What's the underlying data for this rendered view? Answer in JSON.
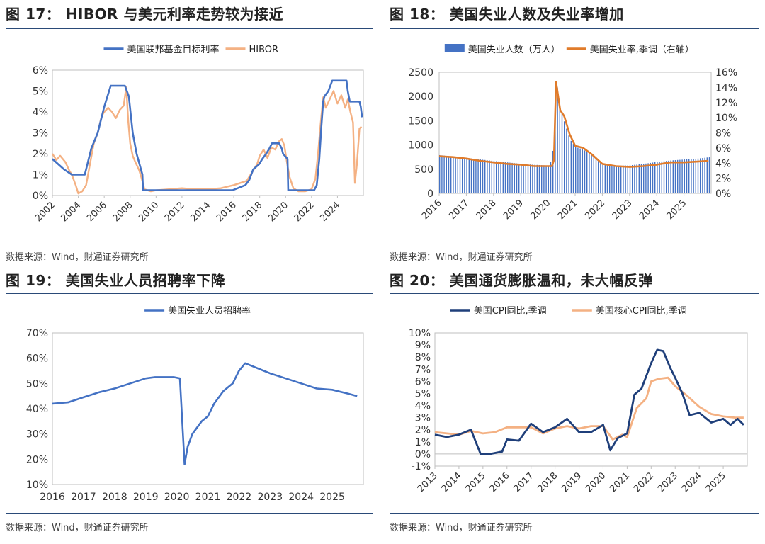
{
  "source_text": "数据来源：Wind，财通证券研究所",
  "colors": {
    "blue": "#4472c4",
    "orange": "#f4b183",
    "dark_orange": "#e07b2a",
    "navy": "#1f3f7a",
    "light_orange": "#f4b183",
    "rule": "#2a4a78"
  },
  "chart_data": [
    {
      "type": "line",
      "title": "图 17：  HIBOR 与美元利率走势较为接近",
      "series": [
        {
          "name": "美国联邦基金目标利率",
          "color": "#4472c4",
          "x": [
            2002,
            2002.9,
            2003.5,
            2004.5,
            2004.6,
            2005,
            2005.5,
            2006,
            2006.5,
            2007.6,
            2007.9,
            2008.2,
            2008.5,
            2008.95,
            2009,
            2015.9,
            2016.9,
            2017.2,
            2017.5,
            2017.95,
            2018.2,
            2018.5,
            2018.75,
            2018.95,
            2019.5,
            2019.7,
            2019.8,
            2020.15,
            2020.2,
            2022.2,
            2022.4,
            2022.6,
            2022.75,
            2022.9,
            2023,
            2023.3,
            2023.6,
            2024.7,
            2024.8,
            2024.95,
            2025.7,
            2025.8,
            2025.9
          ],
          "y": [
            1.75,
            1.25,
            1.0,
            1.0,
            1.25,
            2.25,
            3.0,
            4.25,
            5.25,
            5.25,
            4.75,
            3.0,
            2.0,
            1.0,
            0.25,
            0.25,
            0.5,
            0.75,
            1.25,
            1.5,
            1.75,
            2.0,
            2.25,
            2.5,
            2.5,
            2.25,
            2.0,
            1.75,
            0.25,
            0.25,
            0.5,
            1.75,
            3.25,
            4.5,
            4.75,
            5.0,
            5.5,
            5.5,
            5.0,
            4.5,
            4.5,
            4.25,
            3.75
          ]
        },
        {
          "name": "HIBOR",
          "color": "#f4b183",
          "x": [
            2002,
            2002.3,
            2002.6,
            2003,
            2003.3,
            2003.5,
            2003.8,
            2004,
            2004.3,
            2004.6,
            2004.9,
            2005.2,
            2005.5,
            2005.8,
            2006,
            2006.3,
            2006.6,
            2006.9,
            2007.2,
            2007.5,
            2007.7,
            2007.85,
            2008,
            2008.2,
            2008.4,
            2008.7,
            2008.9,
            2009.1,
            2009.6,
            2010,
            2011,
            2012,
            2013,
            2014,
            2015,
            2016,
            2016.5,
            2017,
            2017.5,
            2017.8,
            2018,
            2018.3,
            2018.6,
            2018.9,
            2019.2,
            2019.5,
            2019.7,
            2019.9,
            2020.1,
            2020.3,
            2020.6,
            2021,
            2021.5,
            2022,
            2022.3,
            2022.5,
            2022.7,
            2022.9,
            2023.1,
            2023.4,
            2023.7,
            2024,
            2024.3,
            2024.6,
            2024.8,
            2025,
            2025.2,
            2025.35,
            2025.5,
            2025.7,
            2025.85
          ],
          "y": [
            2.0,
            1.7,
            1.9,
            1.6,
            1.2,
            1.0,
            0.5,
            0.1,
            0.2,
            0.5,
            1.5,
            2.5,
            3.0,
            3.8,
            4.0,
            4.2,
            4.0,
            3.7,
            4.1,
            4.3,
            5.2,
            3.6,
            2.5,
            1.9,
            1.6,
            1.2,
            0.8,
            0.3,
            0.2,
            0.25,
            0.3,
            0.35,
            0.3,
            0.3,
            0.35,
            0.5,
            0.6,
            0.7,
            1.2,
            1.5,
            1.9,
            2.2,
            1.8,
            2.3,
            2.2,
            2.6,
            2.7,
            2.4,
            1.6,
            0.9,
            0.35,
            0.2,
            0.2,
            0.3,
            0.8,
            2.0,
            3.4,
            4.7,
            4.2,
            4.6,
            5.0,
            4.4,
            4.8,
            4.2,
            4.6,
            4.0,
            3.5,
            0.6,
            1.5,
            3.2,
            3.3
          ]
        }
      ],
      "ylim": [
        0,
        6
      ],
      "yticks": [
        "0%",
        "1%",
        "2%",
        "3%",
        "4%",
        "5%",
        "6%"
      ],
      "xlim": [
        2002,
        2026
      ],
      "xticks": [
        "2002",
        "2004",
        "2006",
        "2008",
        "2010",
        "2012",
        "2014",
        "2016",
        "2018",
        "2020",
        "2022",
        "2024"
      ]
    },
    {
      "type": "bar+line",
      "title": "图 18：  美国失业人数及失业率增加",
      "bars": {
        "name": "美国失业人数（万人）",
        "color": "#4472c4",
        "x": [
          2016,
          2016.5,
          2017,
          2017.5,
          2018,
          2018.5,
          2019,
          2019.5,
          2020,
          2020.15,
          2020.3,
          2020.45,
          2020.6,
          2020.8,
          2021,
          2021.3,
          2021.6,
          2022,
          2022.5,
          2023,
          2023.5,
          2024,
          2024.5,
          2025,
          2025.5,
          2025.9
        ],
        "values": [
          790,
          760,
          730,
          700,
          670,
          640,
          610,
          590,
          575,
          700,
          2300,
          1780,
          1450,
          1110,
          960,
          900,
          780,
          590,
          570,
          580,
          610,
          650,
          680,
          700,
          720,
          745
        ]
      },
      "line": {
        "name": "美国失业率,季调（右轴）",
        "color": "#e07b2a",
        "x": [
          2016,
          2016.5,
          2017,
          2017.5,
          2018,
          2018.5,
          2019,
          2019.5,
          2020,
          2020.15,
          2020.22,
          2020.3,
          2020.45,
          2020.6,
          2020.8,
          2021,
          2021.3,
          2021.6,
          2022,
          2022.5,
          2023,
          2023.5,
          2024,
          2024.5,
          2025,
          2025.5,
          2025.9
        ],
        "y": [
          4.9,
          4.8,
          4.6,
          4.3,
          4.1,
          3.9,
          3.8,
          3.6,
          3.6,
          3.6,
          4.4,
          14.7,
          11.0,
          10.2,
          7.8,
          6.3,
          6.0,
          5.2,
          3.9,
          3.6,
          3.5,
          3.6,
          3.8,
          4.1,
          4.1,
          4.2,
          4.3
        ]
      },
      "ylim_left": [
        0,
        2500
      ],
      "yticks_left": [
        "0",
        "500",
        "1000",
        "1500",
        "2000",
        "2500"
      ],
      "ylim_right": [
        0,
        16
      ],
      "yticks_right": [
        "0%",
        "2%",
        "4%",
        "6%",
        "8%",
        "10%",
        "12%",
        "14%",
        "16%"
      ],
      "xlim": [
        2016,
        2026
      ],
      "xticks": [
        "2016",
        "2017",
        "2018",
        "2019",
        "2020",
        "2021",
        "2022",
        "2023",
        "2024",
        "2025"
      ]
    },
    {
      "type": "line",
      "title": "图 19：  美国失业人员招聘率下降",
      "series": [
        {
          "name": "美国失业人员招聘率",
          "color": "#4472c4",
          "x": [
            2016,
            2016.5,
            2017,
            2017.5,
            2018,
            2018.5,
            2019,
            2019.3,
            2019.6,
            2019.9,
            2020.1,
            2020.25,
            2020.35,
            2020.5,
            2020.8,
            2021,
            2021.2,
            2021.5,
            2021.8,
            2022,
            2022.2,
            2022.5,
            2022.8,
            2023,
            2023.5,
            2024,
            2024.5,
            2025,
            2025.5,
            2025.8
          ],
          "y": [
            42,
            42.5,
            44.5,
            46.5,
            48,
            50,
            52,
            52.5,
            52.5,
            52.5,
            52,
            18,
            25,
            30,
            35,
            37,
            42,
            47,
            50,
            55,
            58,
            56.5,
            55,
            54,
            52,
            50,
            48,
            47.5,
            46,
            45
          ]
        }
      ],
      "ylim": [
        10,
        70
      ],
      "yticks": [
        "10%",
        "20%",
        "30%",
        "40%",
        "50%",
        "60%",
        "70%"
      ],
      "xlim": [
        2016,
        2026
      ],
      "xticks": [
        "2016",
        "2017",
        "2018",
        "2019",
        "2020",
        "2021",
        "2022",
        "2023",
        "2024",
        "2025"
      ]
    },
    {
      "type": "line",
      "title": "图 20：  美国通货膨胀温和，未大幅反弹",
      "series": [
        {
          "name": "美国CPI同比,季调",
          "color": "#1f3f7a",
          "x": [
            2013,
            2013.5,
            2014,
            2014.5,
            2014.9,
            2015.3,
            2015.8,
            2016,
            2016.5,
            2017,
            2017.5,
            2018,
            2018.5,
            2019,
            2019.5,
            2020,
            2020.3,
            2020.6,
            2021,
            2021.3,
            2021.6,
            2022,
            2022.25,
            2022.5,
            2022.8,
            2023,
            2023.3,
            2023.6,
            2024,
            2024.5,
            2025,
            2025.3,
            2025.6,
            2025.85
          ],
          "y": [
            1.6,
            1.4,
            1.6,
            2.0,
            0.0,
            0.0,
            0.2,
            1.2,
            1.1,
            2.5,
            1.8,
            2.2,
            2.9,
            1.8,
            1.8,
            2.4,
            0.3,
            1.3,
            1.7,
            4.9,
            5.4,
            7.5,
            8.6,
            8.5,
            7.1,
            6.3,
            5.0,
            3.2,
            3.4,
            2.6,
            2.9,
            2.4,
            2.9,
            2.4
          ]
        },
        {
          "name": "美国核心CPI同比,季调",
          "color": "#f4b183",
          "x": [
            2013,
            2013.5,
            2014,
            2014.5,
            2015,
            2015.5,
            2016,
            2016.5,
            2017,
            2017.5,
            2018,
            2018.5,
            2019,
            2019.5,
            2020,
            2020.4,
            2020.8,
            2021,
            2021.4,
            2021.8,
            2022,
            2022.3,
            2022.7,
            2023,
            2023.5,
            2024,
            2024.5,
            2025,
            2025.5,
            2025.85
          ],
          "y": [
            1.8,
            1.7,
            1.6,
            1.9,
            1.7,
            1.8,
            2.2,
            2.2,
            2.2,
            1.7,
            2.1,
            2.3,
            2.1,
            2.3,
            2.3,
            1.2,
            1.6,
            1.4,
            3.8,
            4.6,
            6.0,
            6.2,
            6.3,
            5.6,
            4.8,
            3.9,
            3.3,
            3.1,
            3.0,
            3.0
          ]
        }
      ],
      "ylim": [
        -1,
        10
      ],
      "yticks": [
        "-1%",
        "0%",
        "1%",
        "2%",
        "3%",
        "4%",
        "5%",
        "6%",
        "7%",
        "8%",
        "9%",
        "10%"
      ],
      "xlim": [
        2013,
        2026
      ],
      "xticks": [
        "2013",
        "2014",
        "2015",
        "2016",
        "2017",
        "2018",
        "2019",
        "2020",
        "2021",
        "2022",
        "2023",
        "2024",
        "2025"
      ]
    }
  ]
}
